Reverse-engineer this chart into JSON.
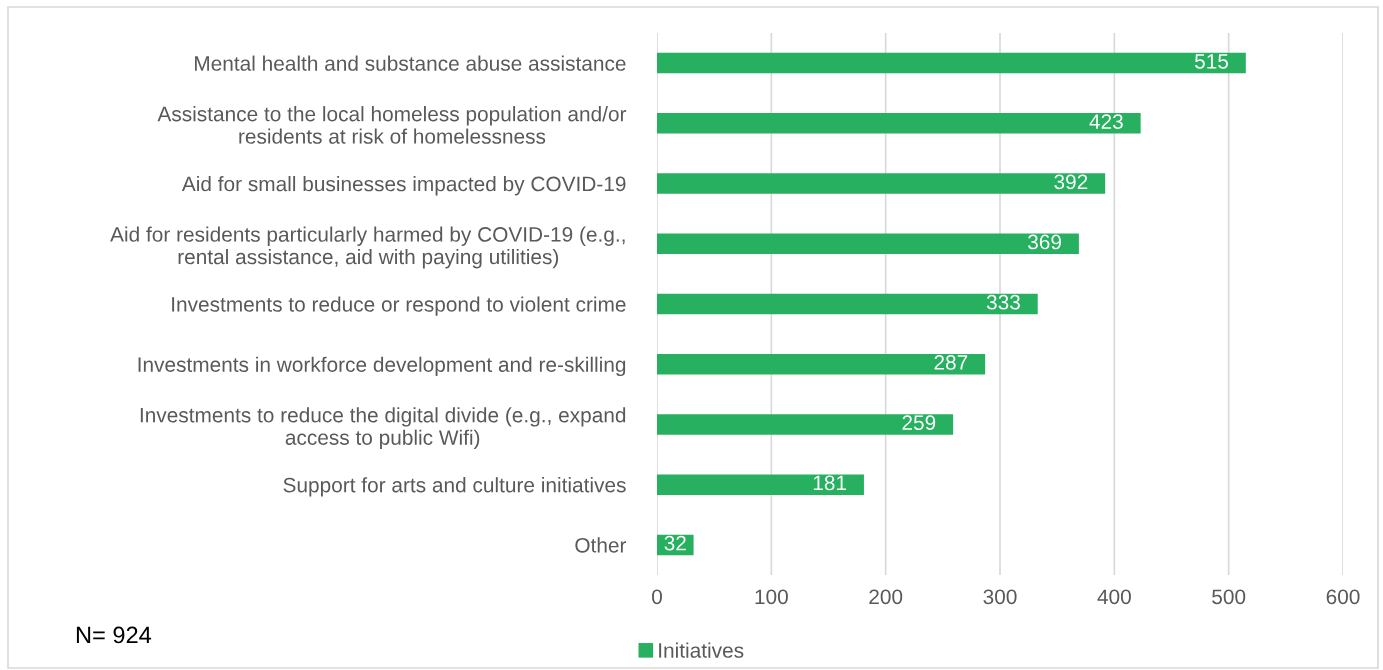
{
  "chart_data": {
    "type": "bar",
    "orientation": "horizontal",
    "categories": [
      "Mental health and substance abuse assistance",
      "Assistance to the local homeless population and/or\nresidents at risk of homelessness",
      "Aid for small businesses impacted by COVID-19",
      "Aid for residents particularly harmed by COVID-19 (e.g.,\nrental assistance, aid with paying utilities)",
      "Investments to reduce or respond to violent crime",
      "Investments in workforce development and re-skilling",
      "Investments to reduce the digital divide (e.g., expand\naccess to public Wifi)",
      "Support for arts and culture initiatives",
      "Other"
    ],
    "series": [
      {
        "name": "Initiatives",
        "color": "#27b05f",
        "values": [
          515,
          423,
          392,
          369,
          333,
          287,
          259,
          181,
          32
        ]
      }
    ],
    "xlim": [
      0,
      600
    ],
    "xticks": [
      0,
      100,
      200,
      300,
      400,
      500,
      600
    ],
    "grid": "x",
    "legend": "bottom",
    "data_labels": true,
    "annotations": [
      "N= 924"
    ]
  }
}
